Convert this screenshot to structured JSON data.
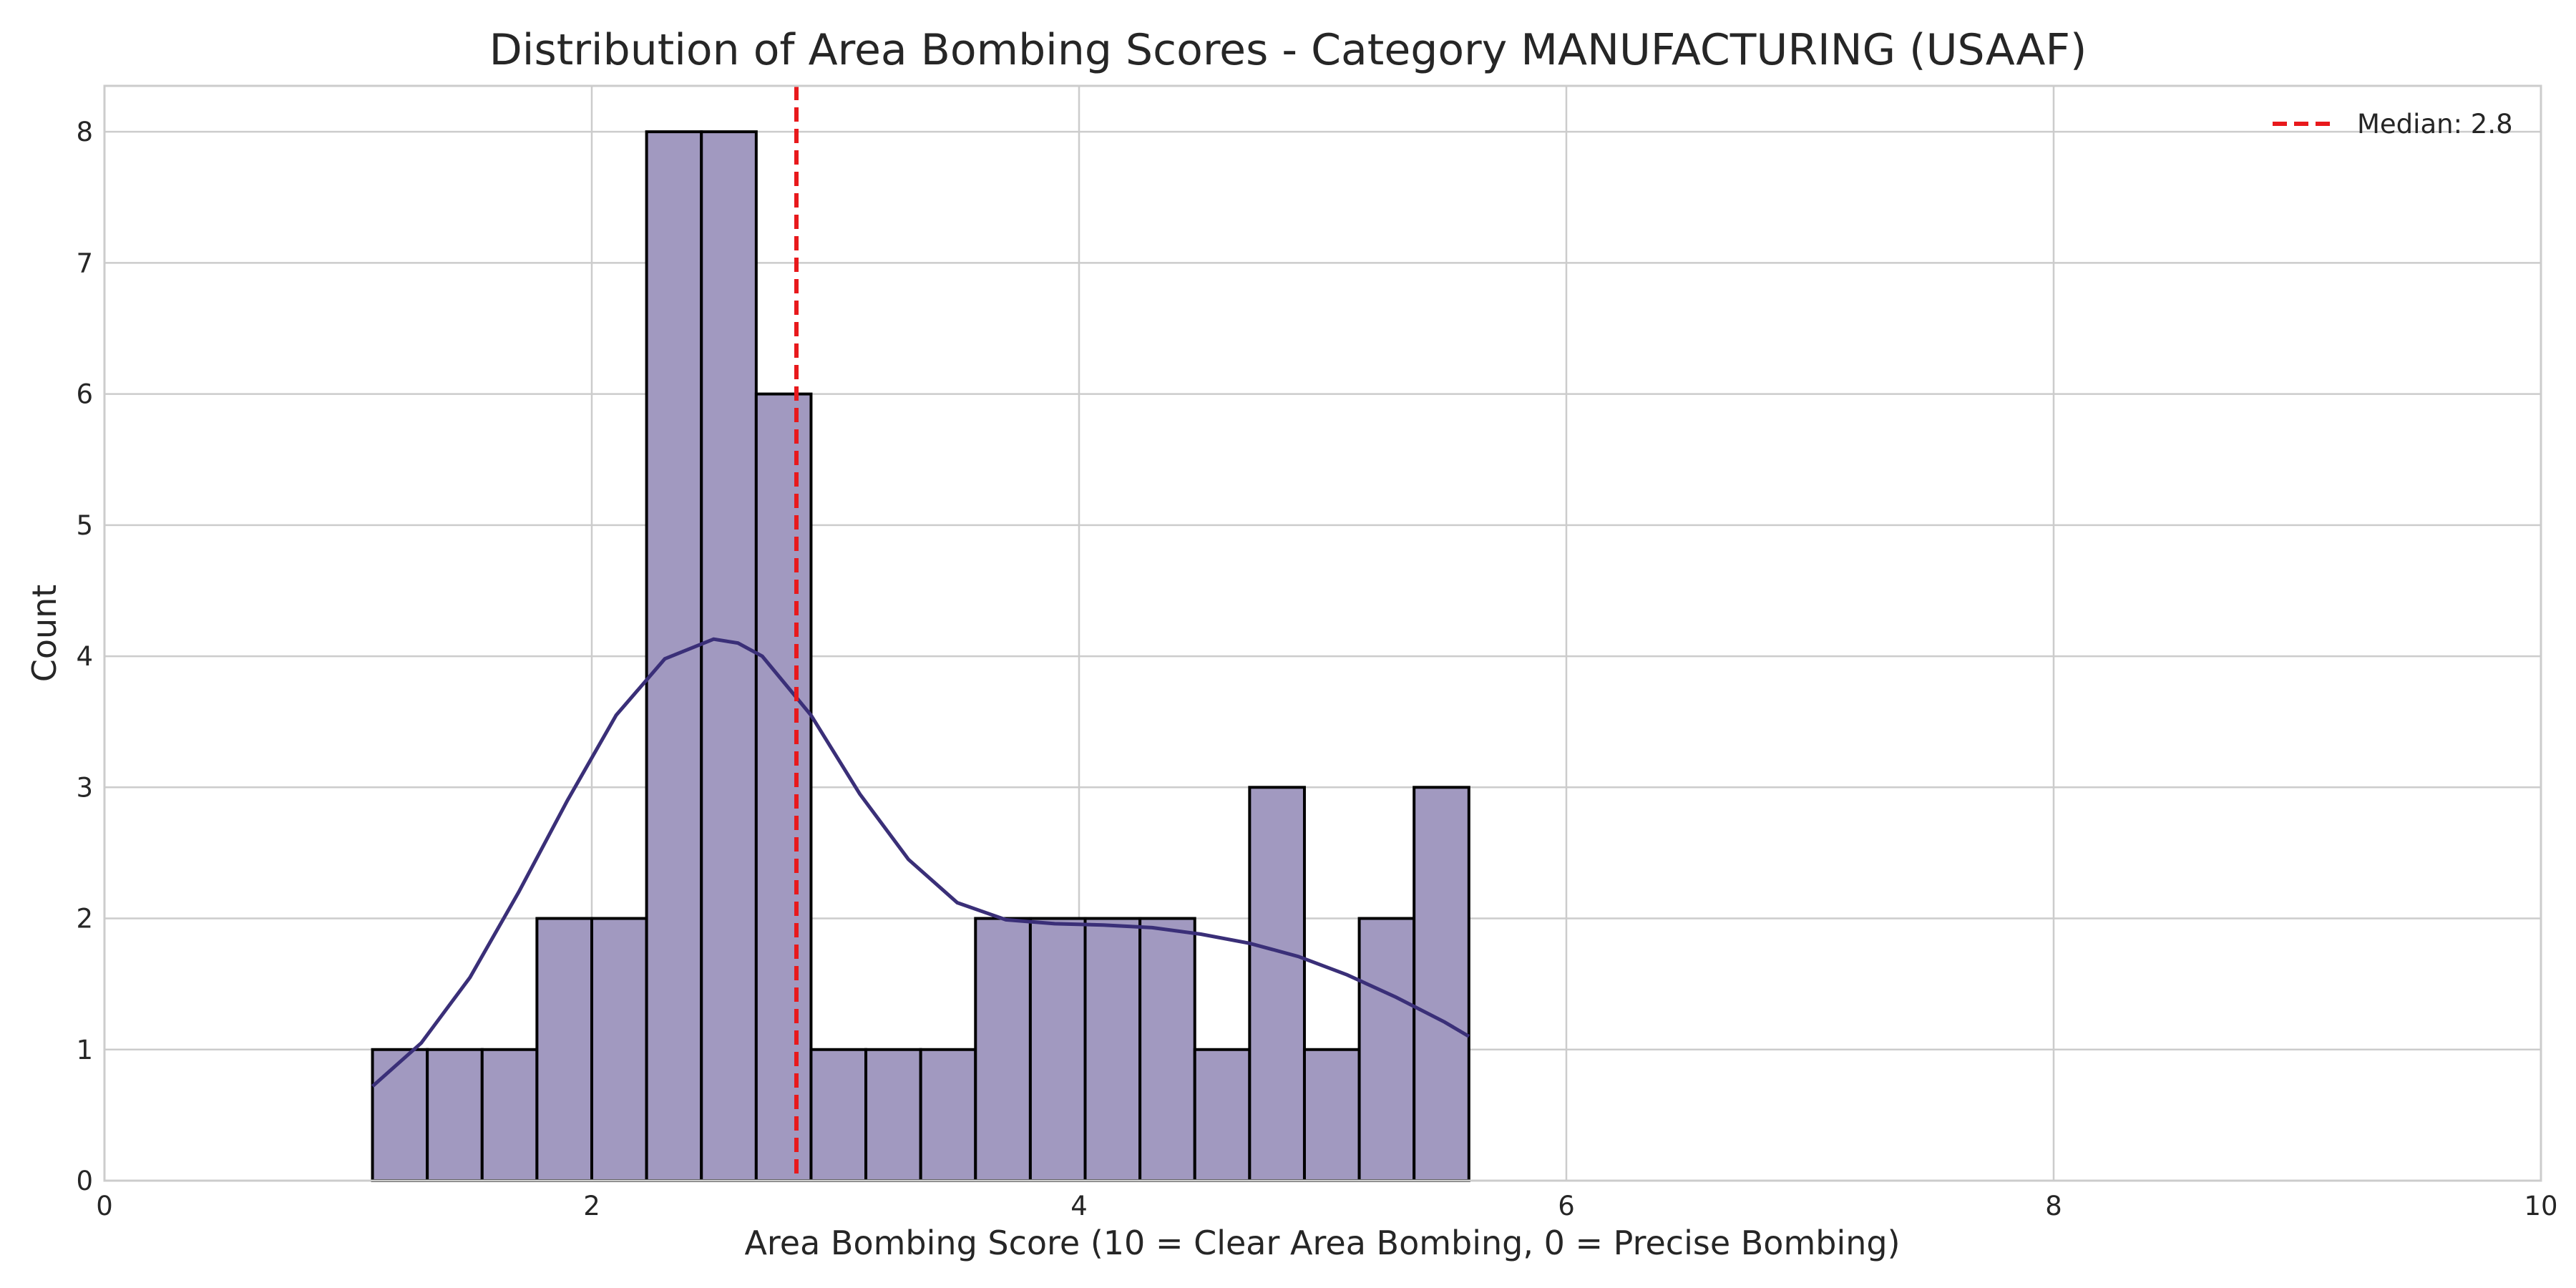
{
  "chart_data": {
    "type": "bar",
    "title": "Distribution of Area Bombing Scores - Category MANUFACTURING (USAAF)",
    "xlabel": "Area Bombing Score (10 = Clear Area Bombing, 0 = Precise Bombing)",
    "ylabel": "Count",
    "xlim": [
      0,
      10
    ],
    "ylim": [
      0,
      8.35
    ],
    "xticks": [
      "0",
      "2",
      "4",
      "6",
      "8",
      "10"
    ],
    "yticks": [
      "0",
      "1",
      "2",
      "3",
      "4",
      "5",
      "6",
      "7",
      "8"
    ],
    "grid": true,
    "legend_position": "top-right",
    "bins": {
      "start": 1.1,
      "width": 0.225,
      "counts": [
        1,
        1,
        1,
        2,
        2,
        8,
        8,
        6,
        1,
        1,
        1,
        2,
        2,
        2,
        2,
        1,
        3,
        1,
        2,
        3
      ]
    },
    "kde": {
      "x": [
        1.1,
        1.3,
        1.5,
        1.7,
        1.9,
        2.1,
        2.3,
        2.5,
        2.6,
        2.7,
        2.9,
        3.1,
        3.3,
        3.5,
        3.7,
        3.9,
        4.1,
        4.3,
        4.5,
        4.7,
        4.9,
        5.1,
        5.3,
        5.5,
        5.6
      ],
      "y": [
        0.72,
        1.05,
        1.55,
        2.2,
        2.9,
        3.55,
        3.98,
        4.13,
        4.1,
        4.0,
        3.55,
        2.95,
        2.45,
        2.12,
        1.99,
        1.96,
        1.95,
        1.93,
        1.88,
        1.81,
        1.71,
        1.57,
        1.4,
        1.21,
        1.1
      ]
    },
    "median": {
      "value": 2.84,
      "label": "Median: 2.8"
    },
    "colors": {
      "bar_fill": "#a199c0",
      "bar_edge": "#000000",
      "kde_line": "#3a2f78",
      "median_line": "#e8191c",
      "grid": "#cccccc"
    }
  }
}
